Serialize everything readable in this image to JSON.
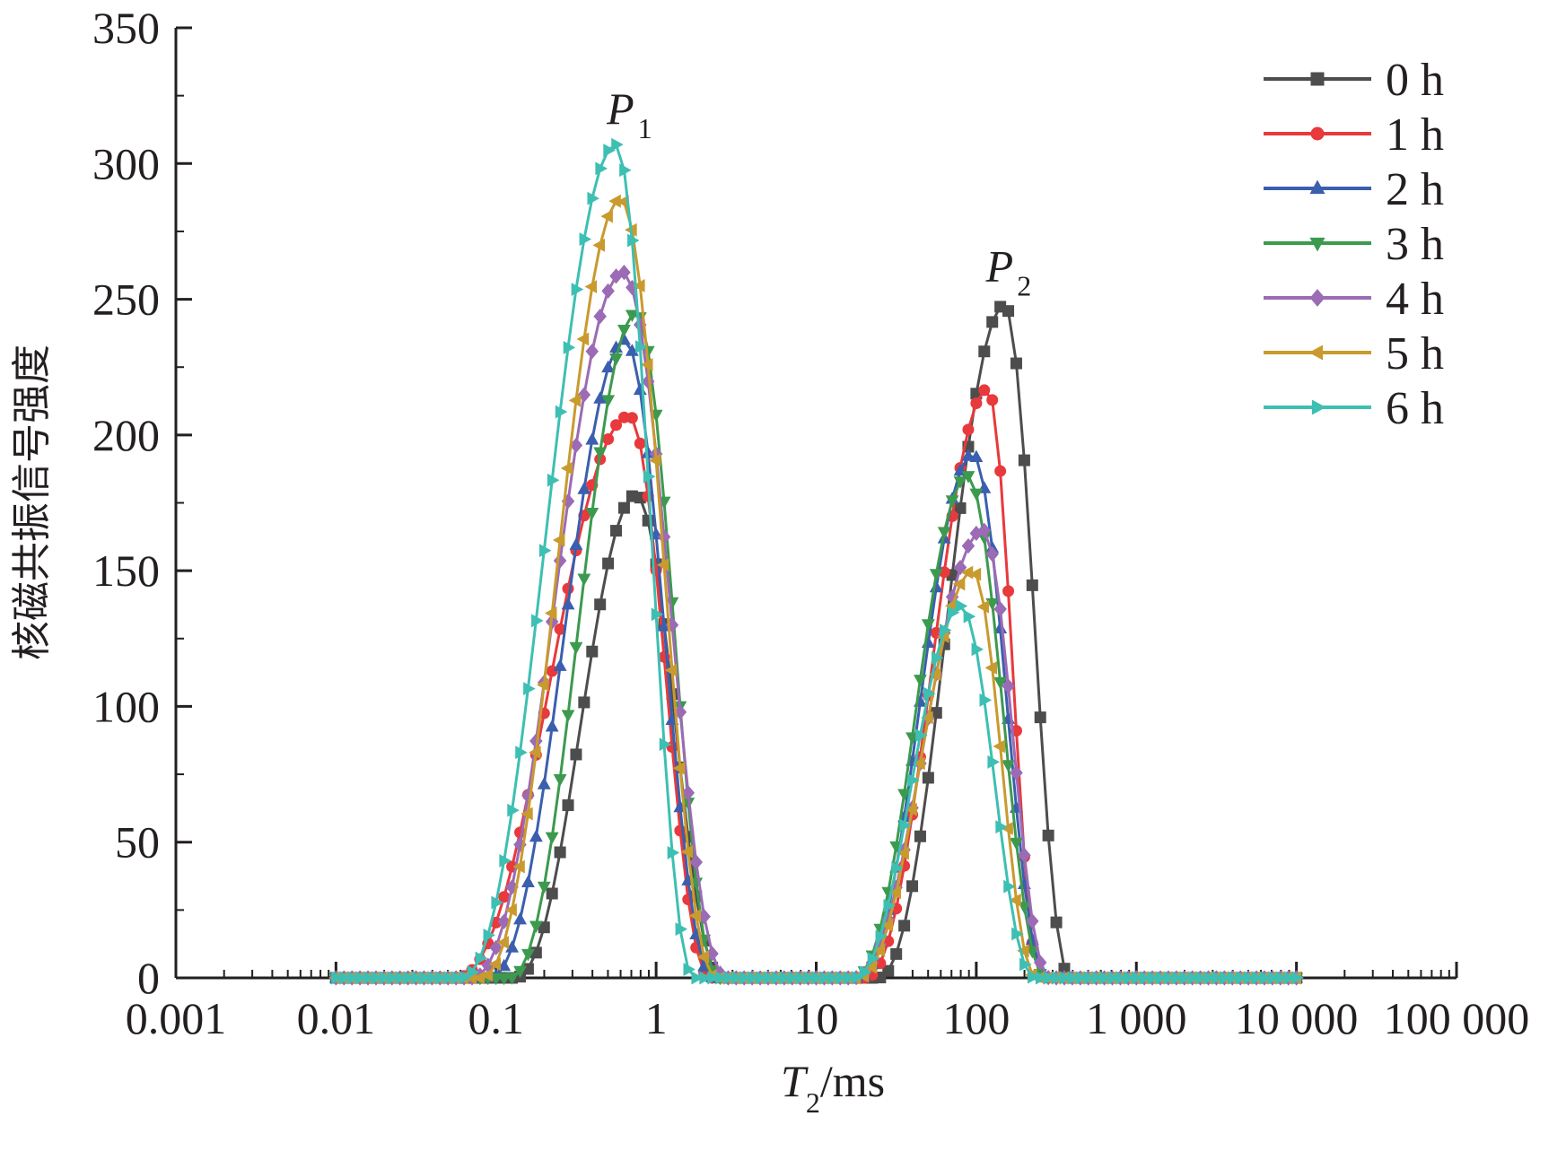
{
  "chart_data": {
    "type": "line",
    "xlabel": "T2/ms",
    "xlabel_main": "T",
    "xlabel_sub": "2",
    "xlabel_unit": "/ms",
    "ylabel": "核磁共振信号强度",
    "x_scale": "log",
    "xlim": [
      0.001,
      100000
    ],
    "ylim": [
      0,
      350
    ],
    "x_ticks": [
      0.001,
      0.01,
      0.1,
      1,
      10,
      100,
      1000,
      10000,
      100000
    ],
    "x_tick_labels": [
      "0.001",
      "0.01",
      "0.1",
      "1",
      "10",
      "100",
      "1 000",
      "10 000",
      "100 000"
    ],
    "y_ticks": [
      0,
      50,
      100,
      150,
      200,
      250,
      300,
      350
    ],
    "y_tick_labels": [
      "0",
      "50",
      "100",
      "150",
      "200",
      "250",
      "300",
      "350"
    ],
    "grid": false,
    "legend_position": "top-right",
    "annotations": [
      {
        "text": "P",
        "sub": "1",
        "x": 0.62,
        "y": 318
      },
      {
        "text": "P",
        "sub": "2",
        "x": 145,
        "y": 260
      }
    ],
    "series": [
      {
        "name": "0 h",
        "color": "#4d4d4d",
        "marker": "square",
        "peaks": [
          {
            "center": 0.75,
            "height": 178,
            "lo": 0.13,
            "hi": 2.6
          },
          {
            "center": 150,
            "height": 248,
            "lo": 24,
            "hi": 390
          }
        ]
      },
      {
        "name": "1 h",
        "color": "#e8393c",
        "marker": "circle",
        "peaks": [
          {
            "center": 0.68,
            "height": 207,
            "lo": 0.055,
            "hi": 2.2
          },
          {
            "center": 118,
            "height": 217,
            "lo": 20,
            "hi": 260
          }
        ]
      },
      {
        "name": "2 h",
        "color": "#3b5fae",
        "marker": "triangle-up",
        "peaks": [
          {
            "center": 0.64,
            "height": 235,
            "lo": 0.09,
            "hi": 2.3
          },
          {
            "center": 95,
            "height": 193,
            "lo": 18,
            "hi": 280
          }
        ]
      },
      {
        "name": "3 h",
        "color": "#3c9a4e",
        "marker": "triangle-down",
        "peaks": [
          {
            "center": 0.75,
            "height": 245,
            "lo": 0.12,
            "hi": 2.5
          },
          {
            "center": 88,
            "height": 185,
            "lo": 17,
            "hi": 275
          }
        ]
      },
      {
        "name": "4 h",
        "color": "#9b6bb5",
        "marker": "diamond",
        "peaks": [
          {
            "center": 0.62,
            "height": 260,
            "lo": 0.07,
            "hi": 2.8
          },
          {
            "center": 110,
            "height": 165,
            "lo": 17,
            "hi": 290
          }
        ]
      },
      {
        "name": "5 h",
        "color": "#c99a2e",
        "marker": "triangle-left",
        "peaks": [
          {
            "center": 0.6,
            "height": 287,
            "lo": 0.08,
            "hi": 2.4
          },
          {
            "center": 95,
            "height": 150,
            "lo": 18,
            "hi": 240
          }
        ]
      },
      {
        "name": "6 h",
        "color": "#3ebfb3",
        "marker": "triangle-right",
        "peaks": [
          {
            "center": 0.56,
            "height": 307,
            "lo": 0.06,
            "hi": 1.75
          },
          {
            "center": 80,
            "height": 137,
            "lo": 17,
            "hi": 235
          }
        ]
      }
    ]
  }
}
